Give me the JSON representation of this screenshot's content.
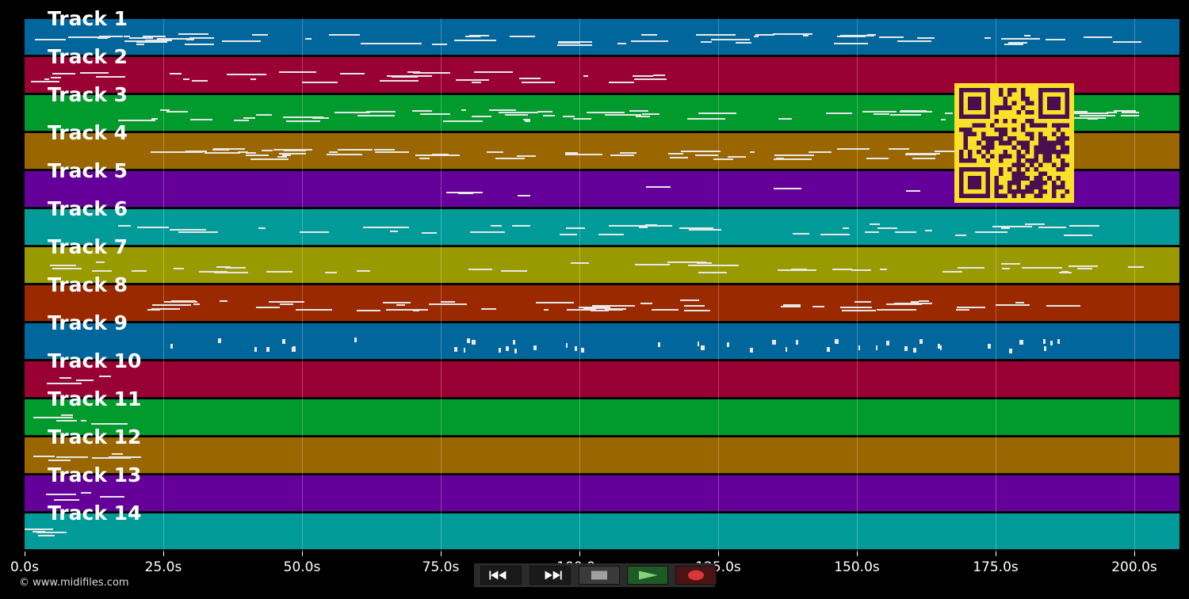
{
  "tracks": [
    {
      "label": "Track 1",
      "color": "#01669b"
    },
    {
      "label": "Track 2",
      "color": "#990033"
    },
    {
      "label": "Track 3",
      "color": "#009a2d"
    },
    {
      "label": "Track 4",
      "color": "#9a6600"
    },
    {
      "label": "Track 5",
      "color": "#640099"
    },
    {
      "label": "Track 6",
      "color": "#009b99"
    },
    {
      "label": "Track 7",
      "color": "#999a00"
    },
    {
      "label": "Track 8",
      "color": "#9a2900"
    },
    {
      "label": "Track 9",
      "color": "#01669b"
    },
    {
      "label": "Track 10",
      "color": "#990033"
    },
    {
      "label": "Track 11",
      "color": "#009a2d"
    },
    {
      "label": "Track 12",
      "color": "#9a6600"
    },
    {
      "label": "Track 13",
      "color": "#640099"
    },
    {
      "label": "Track 14",
      "color": "#009b99"
    }
  ],
  "timeline": {
    "ticks": [
      "0.0s",
      "25.0s",
      "50.0s",
      "75.0s",
      "100.0s",
      "125.0s",
      "150.0s",
      "175.0s",
      "200.0s"
    ]
  },
  "credit": "© www.midifiles.com",
  "transport": {
    "rewind_icon": "rewind-icon",
    "fast_forward_icon": "fast-forward-icon",
    "stop_icon": "stop-icon",
    "play_icon": "play-icon",
    "record_icon": "record-icon"
  },
  "colors": {
    "qr_background": "#fbe02a",
    "qr_modules": "#4a0f4f"
  }
}
